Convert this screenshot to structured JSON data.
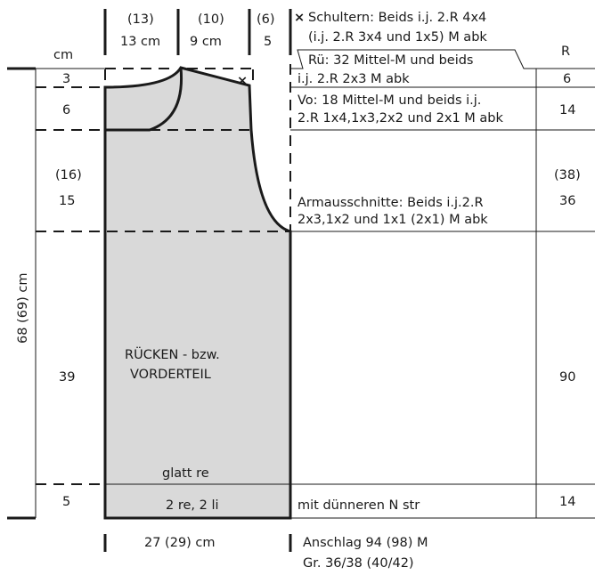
{
  "colors": {
    "panel_fill": "#d9d9d9",
    "ink": "#1a1a1a"
  },
  "header": {
    "cm_label": "cm",
    "r_label": "R",
    "widths": [
      {
        "size_alt": "(13)",
        "value": "13 cm"
      },
      {
        "size_alt": "(10)",
        "value": "9 cm"
      },
      {
        "size_alt": "(6)",
        "value": "5"
      }
    ]
  },
  "rows": [
    {
      "cm": "3",
      "r": "6"
    },
    {
      "cm": "6",
      "r": "14"
    },
    {
      "cm_alt": "(16)",
      "cm": "15",
      "r_alt": "(38)",
      "r": "36"
    },
    {
      "cm": "39",
      "r": "90"
    },
    {
      "cm": "5",
      "r": "14"
    }
  ],
  "total_height": "68 (69) cm",
  "notes": {
    "shoulders_line1": "Schultern: Beids i.j. 2.R 4x4",
    "shoulders_line2": "(i.j. 2.R 3x4 und 1x5) M abk",
    "back_neck_line1": "Rü: 32 Mittel-M und beids",
    "back_neck_line2": "i.j. 2.R 2x3 M abk",
    "front_neck_line1": "Vo: 18 Mittel-M und beids i.j.",
    "front_neck_line2": "2.R 1x4,1x3,2x2 und 2x1 M abk",
    "armhole_line1": "Armausschnitte: Beids i.j.2.R",
    "armhole_line2": "2x3,1x2 und 1x1 (2x1) M abk",
    "ribbing_note": "mit dünneren N str",
    "cast_on": "Anschlag 94 (98) M",
    "sizes": "Gr. 36/38 (40/42)"
  },
  "piece": {
    "title_line1": "RÜCKEN - bzw.",
    "title_line2": "VORDERTEIL",
    "stitch_body": "glatt re",
    "stitch_rib": "2 re, 2 li",
    "width": "27 (29) cm"
  }
}
